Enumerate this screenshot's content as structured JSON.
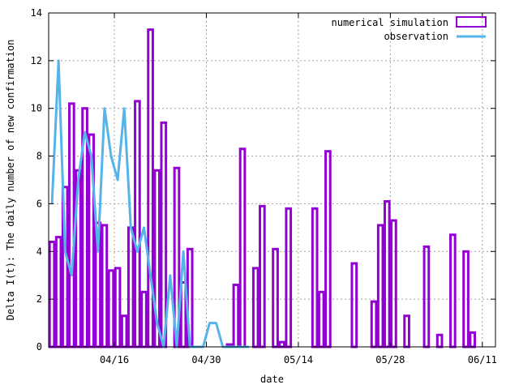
{
  "chart_data": {
    "type": "bar",
    "xlabel": "date",
    "ylabel": "Delta I(t): The daily number of new confirmation",
    "xlim": [
      0,
      68
    ],
    "ylim": [
      0,
      14
    ],
    "x_ticks": [
      {
        "x": 10,
        "label": "04/16"
      },
      {
        "x": 24,
        "label": "04/30"
      },
      {
        "x": 38,
        "label": "05/14"
      },
      {
        "x": 52,
        "label": "05/28"
      },
      {
        "x": 66,
        "label": "06/11"
      }
    ],
    "y_ticks": [
      0,
      2,
      4,
      6,
      8,
      10,
      12,
      14
    ],
    "grid": true,
    "legend_position": "top-right",
    "colors": {
      "simulation": "#9400D3",
      "observation": "#56B4E9"
    },
    "series": [
      {
        "name": "numerical simulation",
        "style": "bars",
        "x": [
          0,
          1,
          2,
          3,
          4,
          5,
          6,
          7,
          8,
          9,
          10,
          11,
          12,
          13,
          14,
          15,
          16,
          17,
          18,
          19,
          20,
          21,
          22,
          23,
          24,
          25,
          26,
          27,
          28,
          29,
          30,
          31,
          32,
          33,
          34,
          35,
          36,
          37,
          38,
          39,
          40,
          41,
          42,
          43,
          44,
          45,
          46,
          47,
          48,
          49,
          50,
          51,
          52,
          53,
          54,
          55,
          56,
          57,
          58,
          59,
          60,
          61,
          62,
          63,
          64,
          65,
          66,
          67
        ],
        "values": [
          4.4,
          4.6,
          6.7,
          10.2,
          7.4,
          10.0,
          8.9,
          5.2,
          5.1,
          3.2,
          3.3,
          1.3,
          5.0,
          10.3,
          2.3,
          13.3,
          7.4,
          9.4,
          0,
          7.5,
          2.7,
          4.1,
          0,
          0,
          0,
          0,
          0,
          0.1,
          2.6,
          8.3,
          0,
          3.3,
          5.9,
          0,
          4.1,
          0.2,
          5.8,
          0,
          0,
          0,
          5.8,
          2.3,
          8.2,
          0,
          0,
          0,
          3.5,
          0,
          0,
          1.9,
          5.1,
          6.1,
          5.3,
          0,
          1.3,
          0,
          0,
          4.2,
          0,
          0.5,
          0,
          4.7,
          0,
          4.0,
          0.6,
          0,
          0,
          0
        ]
      },
      {
        "name": "observation",
        "style": "line",
        "x": [
          0,
          1,
          2,
          3,
          4,
          5,
          6,
          7,
          8,
          9,
          10,
          11,
          12,
          13,
          14,
          15,
          16,
          17,
          18,
          19,
          20,
          21,
          22,
          23,
          24,
          25,
          26,
          27,
          28,
          29,
          30
        ],
        "values": [
          6,
          12,
          4,
          3,
          7,
          9,
          8,
          4,
          10,
          8,
          7,
          10,
          5,
          4,
          5,
          3,
          1,
          0,
          3,
          0,
          4,
          0,
          0,
          0,
          1,
          1,
          0,
          0,
          0,
          0,
          0
        ]
      }
    ]
  }
}
